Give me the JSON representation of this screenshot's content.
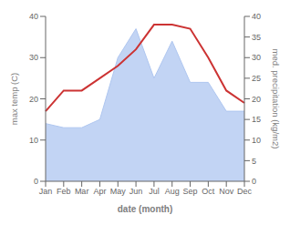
{
  "chart_data": {
    "type": "line",
    "xlabel": "date (month)",
    "ylabel": "max temp (C)",
    "y2label": "med. precipitation (kg/m2)",
    "categories": [
      "Jan",
      "Feb",
      "Mar",
      "Apr",
      "May",
      "Jun",
      "Jul",
      "Aug",
      "Sep",
      "Oct",
      "Nov",
      "Dec"
    ],
    "series": [
      {
        "name": "med. precipitation (kg/m2)",
        "type": "area",
        "axis": "y2",
        "color": "#aec6f0",
        "values": [
          14,
          13,
          13,
          15,
          30,
          37,
          25,
          34,
          24,
          24,
          17,
          17
        ]
      },
      {
        "name": "max temp (C)",
        "type": "line",
        "color": "#cc3333",
        "values": [
          17,
          22,
          22,
          25,
          28,
          32,
          38,
          38,
          37,
          30,
          22,
          19
        ]
      }
    ],
    "ylim": [
      0,
      40
    ],
    "yticks": [
      0,
      10,
      20,
      30,
      40
    ],
    "y2lim": [
      0,
      40
    ],
    "y2ticks": [
      0,
      5,
      10,
      15,
      20,
      25,
      30,
      35,
      40
    ],
    "grid": false
  }
}
